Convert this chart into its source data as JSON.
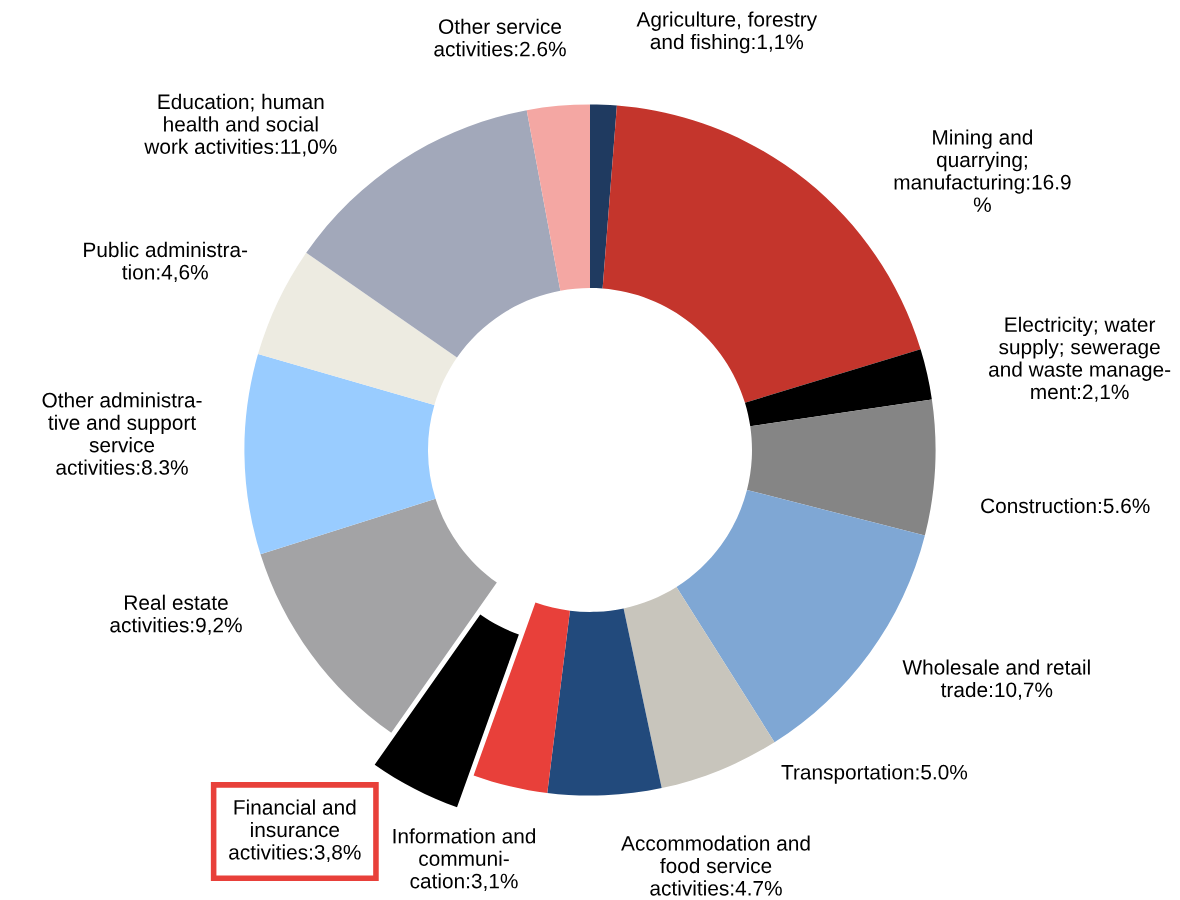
{
  "chart_data": {
    "type": "donut",
    "categories": [
      "Agriculture, forestry\nand fishing:1,1%",
      "Mining and\nquarrying;\nmanufacturing:16.9\n%",
      "Electricity; water\nsupply; sewerage\nand waste manage-\nment:2,1%",
      "Construction:5.6%",
      "Wholesale and retail\ntrade:10,7%",
      "Transportation:5.0%",
      "Accommodation and\nfood service\nactivities:4.7%",
      "Information and\ncommuni-\ncation:3,1%",
      "Financial and\ninsurance\nactivities:3,8%",
      "Real estate\nactivities:9,2%",
      "Other administra-\ntive and support\nservice\nactivities:8.3%",
      "Public administra-\ntion:4,6%",
      "Education; human\nhealth and social\nwork activities:11,0%",
      "Other service\nactivities:2.6%"
    ],
    "values": [
      1.1,
      16.9,
      2.1,
      5.6,
      10.7,
      5.0,
      4.7,
      3.1,
      3.8,
      9.2,
      8.3,
      4.6,
      11.0,
      2.6
    ],
    "colors": [
      "#1f3a60",
      "#c4352c",
      "#000000",
      "#858585",
      "#7fa7d4",
      "#c8c5bc",
      "#224a7c",
      "#e8403a",
      "#000000",
      "#a3a3a5",
      "#99ccff",
      "#edebe1",
      "#a2a8ba",
      "#f4a7a3"
    ],
    "legend": false
  }
}
